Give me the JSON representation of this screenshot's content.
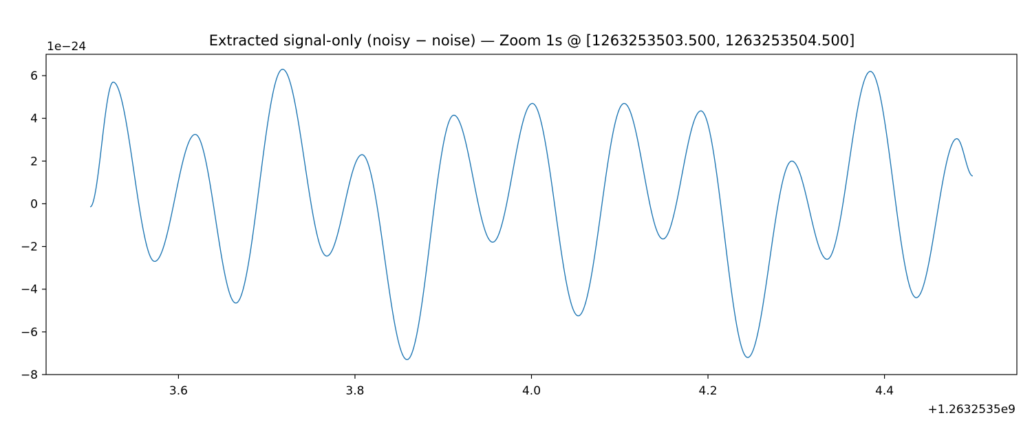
{
  "chart_data": {
    "type": "line",
    "title": "Extracted signal-only (noisy − noise) — Zoom 1s @ [1263253503.500, 1263253504.500]",
    "xlabel": "",
    "ylabel": "",
    "y_multiplier_label": "1e−24",
    "x_offset_label": "+1.2632535e9",
    "xlim": [
      3.45,
      4.55
    ],
    "ylim": [
      -8.0,
      7.0
    ],
    "x_ticks": [
      3.6,
      3.8,
      4.0,
      4.2,
      4.4
    ],
    "x_tick_labels": [
      "3.6",
      "3.8",
      "4.0",
      "4.2",
      "4.4"
    ],
    "y_ticks": [
      -8,
      -6,
      -4,
      -2,
      0,
      2,
      4,
      6
    ],
    "y_tick_labels": [
      "−8",
      "−6",
      "−4",
      "−2",
      "0",
      "2",
      "4",
      "6"
    ],
    "grid": false,
    "series": [
      {
        "color": "#1f77b4",
        "points": [
          [
            3.5,
            -0.15
          ],
          [
            3.526,
            5.7
          ],
          [
            3.573,
            -2.7
          ],
          [
            3.619,
            3.25
          ],
          [
            3.665,
            -4.65
          ],
          [
            3.718,
            6.3
          ],
          [
            3.768,
            -2.45
          ],
          [
            3.808,
            2.3
          ],
          [
            3.859,
            -7.3
          ],
          [
            3.912,
            4.15
          ],
          [
            3.956,
            -1.8
          ],
          [
            4.001,
            4.7
          ],
          [
            4.053,
            -5.25
          ],
          [
            4.105,
            4.7
          ],
          [
            4.149,
            -1.65
          ],
          [
            4.192,
            4.35
          ],
          [
            4.245,
            -7.2
          ],
          [
            4.295,
            2.0
          ],
          [
            4.335,
            -2.6
          ],
          [
            4.384,
            6.2
          ],
          [
            4.436,
            -4.4
          ],
          [
            4.482,
            3.05
          ],
          [
            4.5,
            1.3
          ]
        ]
      }
    ]
  }
}
